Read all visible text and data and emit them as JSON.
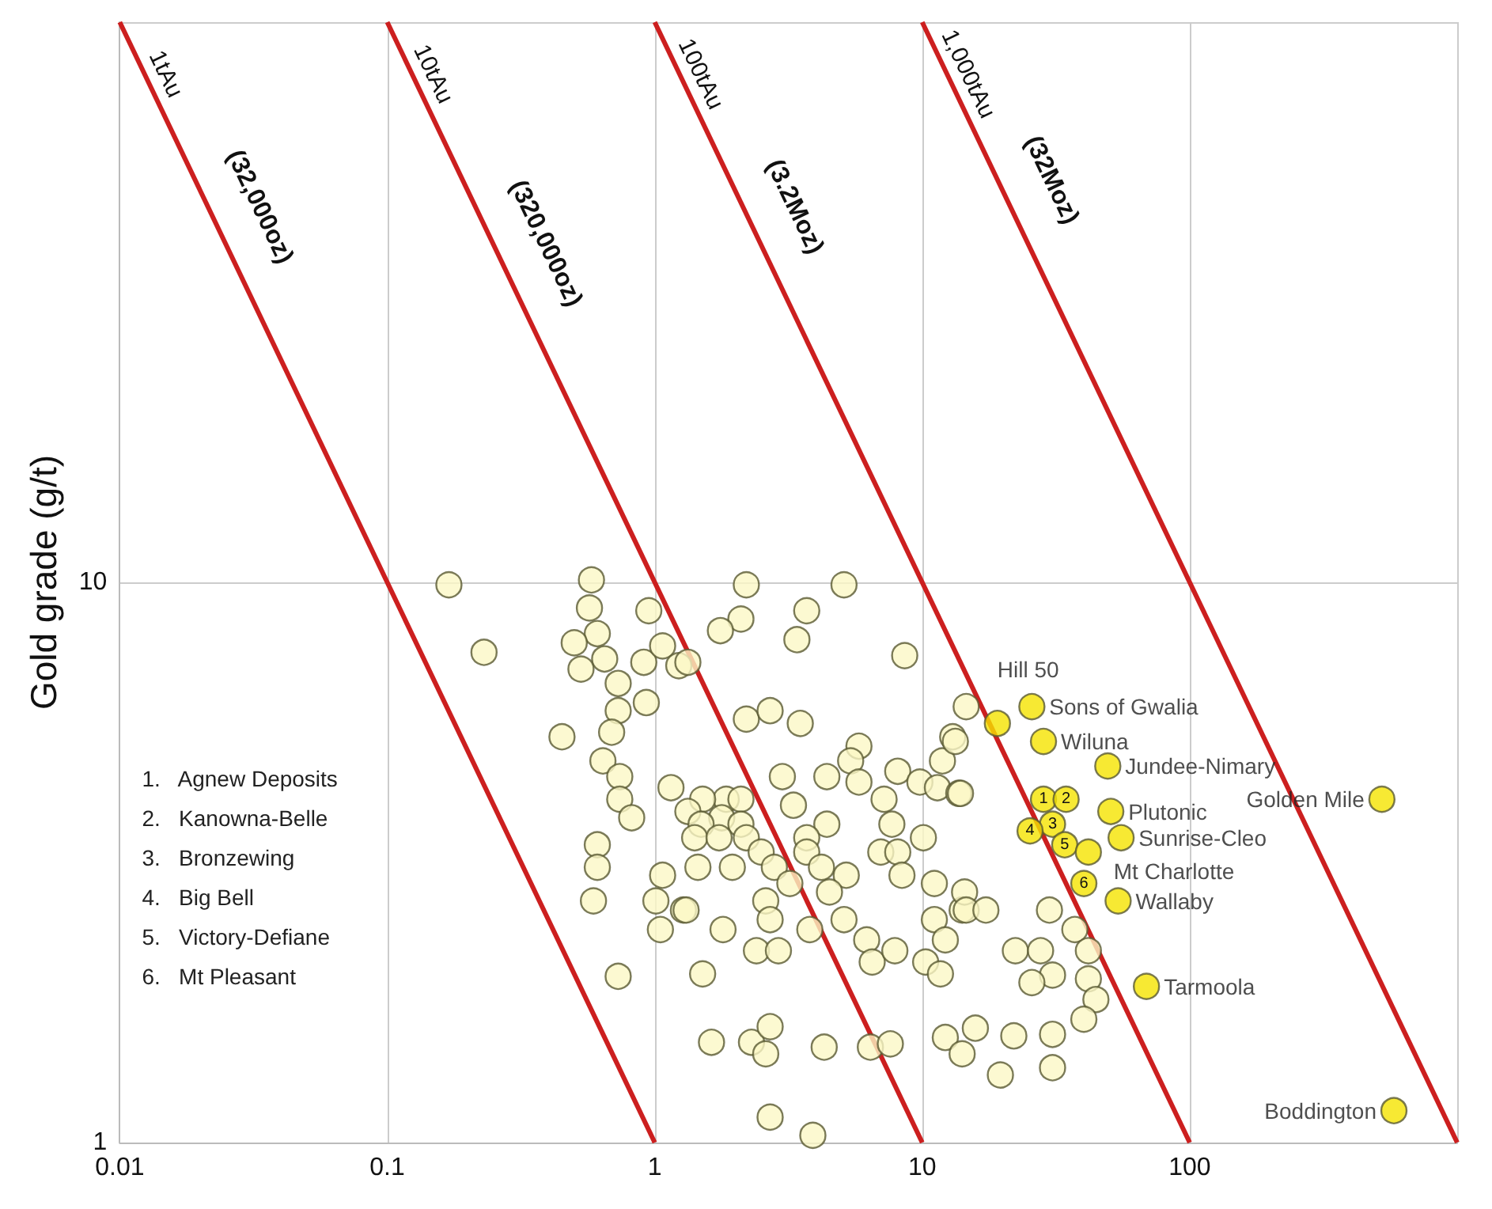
{
  "chart_data": {
    "type": "scatter",
    "ylabel": "Gold grade (g/t)",
    "log": "xy",
    "grid": true,
    "marker": "circle",
    "xlim": [
      0.01,
      1000
    ],
    "ylim": [
      1,
      100
    ],
    "xticks": [
      0.01,
      0.1,
      1,
      10,
      100,
      {
        "value": 1000,
        "label": null
      }
    ],
    "yticks": [
      1,
      10,
      {
        "value": 100,
        "label": null
      }
    ],
    "annotations": [
      "1.   Agnew Deposits",
      "2.   Kanowna-Belle",
      "3.   Bronzewing",
      "4.   Big Bell",
      "5.   Victory-Defiane",
      "6.   Mt Pleasant",
      {
        "text": "(32,000oz)",
        "x": 0.023,
        "y": 43
      },
      {
        "text": "(320,000oz)",
        "x": 0.27,
        "y": 37
      },
      {
        "text": "(3.2Moz)",
        "x": 2.3,
        "y": 43
      },
      {
        "text": "(32Moz)",
        "x": 21,
        "y": 48
      },
      {
        "text": "1",
        "x": 28.4,
        "y": 4.1
      },
      {
        "text": "2",
        "x": 34.5,
        "y": 4.1
      },
      {
        "text": "3",
        "x": 30.7,
        "y": 3.7
      },
      {
        "text": "4",
        "x": 25.3,
        "y": 3.6
      },
      {
        "text": "5",
        "x": 34.1,
        "y": 3.4
      },
      {
        "text": "6",
        "x": 40.2,
        "y": 2.9
      }
    ],
    "series": [
      {
        "type": "line",
        "name": "1tAu",
        "color": "#cc1f1f",
        "marker": "none",
        "x": [
          0.01,
          1
        ],
        "values": [
          100,
          1
        ]
      },
      {
        "type": "line",
        "name": "10tAu",
        "color": "#cc1f1f",
        "marker": "none",
        "x": [
          0.1,
          10
        ],
        "values": [
          100,
          1
        ]
      },
      {
        "type": "line",
        "name": "100tAu",
        "color": "#cc1f1f",
        "marker": "none",
        "x": [
          1,
          100
        ],
        "values": [
          100,
          1
        ]
      },
      {
        "type": "line",
        "name": "1,000tAu",
        "color": "#cc1f1f",
        "marker": "none",
        "x": [
          10,
          1000
        ],
        "values": [
          100,
          1
        ]
      },
      {
        "color": "#fbf8c6",
        "x": [
          0.17,
          0.58,
          0.57,
          0.95,
          0.23,
          0.61,
          0.5,
          0.65,
          0.53,
          0.91,
          1.07,
          1.23,
          0.73,
          0.73,
          0.93,
          0.45,
          0.69,
          0.64,
          0.74,
          0.74,
          0.82,
          1.15,
          0.61,
          0.61,
          0.59,
          1.07,
          1.01,
          1.28,
          1.05,
          0.73,
          2.2,
          5.1,
          2.1,
          1.76,
          3.7,
          3.4,
          8.6,
          2.2,
          2.7,
          3.5,
          5.8,
          5.4,
          5.8,
          8.1,
          9.8,
          11.4,
          13.0,
          11.9,
          13.7,
          7.2,
          7.7,
          10.1,
          7.0,
          8.1,
          8.4,
          11.1,
          3.0,
          4.4,
          3.3,
          4.4,
          3.7,
          3.7,
          4.2,
          5.2,
          4.5,
          5.1,
          3.8,
          6.2,
          6.5,
          7.9,
          10.3,
          11.7,
          11.1,
          12.2,
          14.1,
          1.85,
          1.51,
          2.1,
          1.33,
          1.78,
          1.49,
          2.1,
          1.41,
          1.74,
          2.2,
          2.5,
          2.8,
          3.2,
          1.45,
          1.95,
          1.31,
          2.6,
          2.7,
          1.8,
          2.4,
          2.9,
          1.51,
          1.33,
          1.63,
          2.3,
          2.7,
          2.6,
          4.3,
          6.4,
          7.6,
          12.2,
          14.1,
          2.7,
          3.9,
          14.6,
          13.3,
          13.9,
          14.4,
          14.6,
          17.3,
          29.9,
          37.2,
          22.3,
          27.7,
          30.7,
          25.7,
          41.8,
          41.8,
          44.6,
          40.2,
          15.8,
          22.0,
          30.7,
          19.6,
          30.7
        ],
        "values": [
          9.9,
          10.1,
          9.0,
          8.9,
          7.5,
          8.1,
          7.8,
          7.3,
          7.0,
          7.2,
          7.7,
          7.1,
          6.6,
          5.9,
          6.1,
          5.3,
          5.4,
          4.8,
          4.5,
          4.1,
          3.8,
          4.3,
          3.4,
          3.1,
          2.7,
          3.0,
          2.7,
          2.6,
          2.4,
          1.98,
          9.9,
          9.9,
          8.6,
          8.2,
          8.9,
          7.9,
          7.4,
          5.7,
          5.9,
          5.6,
          5.1,
          4.8,
          4.4,
          4.6,
          4.4,
          4.3,
          5.3,
          4.8,
          4.2,
          4.1,
          3.7,
          3.5,
          3.3,
          3.3,
          3.0,
          2.9,
          4.5,
          4.5,
          4.0,
          3.7,
          3.5,
          3.3,
          3.1,
          3.0,
          2.8,
          2.5,
          2.4,
          2.3,
          2.1,
          2.2,
          2.1,
          2.0,
          2.5,
          2.3,
          2.6,
          4.1,
          4.1,
          4.1,
          3.9,
          3.8,
          3.7,
          3.7,
          3.5,
          3.5,
          3.5,
          3.3,
          3.1,
          2.9,
          3.1,
          3.1,
          2.6,
          2.7,
          2.5,
          2.4,
          2.2,
          2.2,
          2.0,
          7.2,
          1.51,
          1.51,
          1.61,
          1.44,
          1.48,
          1.48,
          1.5,
          1.54,
          1.44,
          1.11,
          1.03,
          6.0,
          5.2,
          4.2,
          2.8,
          2.6,
          2.6,
          2.6,
          2.4,
          2.2,
          2.2,
          1.99,
          1.93,
          2.2,
          1.96,
          1.8,
          1.66,
          1.6,
          1.55,
          1.56,
          1.32,
          1.36
        ]
      },
      {
        "color": "#f5e400",
        "x": [
          19.1,
          25.7,
          28.4,
          49.4,
          523,
          28.4,
          34.5,
          50.7,
          30.7,
          55.4,
          25.3,
          34.1,
          41.8,
          40.2,
          54,
          68.9,
          580
        ],
        "values": [
          5.6,
          6.0,
          5.2,
          4.7,
          4.1,
          4.1,
          4.1,
          3.9,
          3.7,
          3.5,
          3.6,
          3.4,
          3.3,
          2.9,
          2.7,
          1.9,
          1.14
        ],
        "value_labels": [
          "Hill 50",
          "Sons of Gwalia",
          "Wiluna",
          "Jundee-Nimary",
          "Golden Mile",
          null,
          null,
          "Plutonic",
          null,
          "Sunrise-Cleo",
          null,
          null,
          "Mt Charlotte",
          null,
          "Wallaby",
          "Tarmoola",
          "Boddington"
        ]
      }
    ]
  }
}
